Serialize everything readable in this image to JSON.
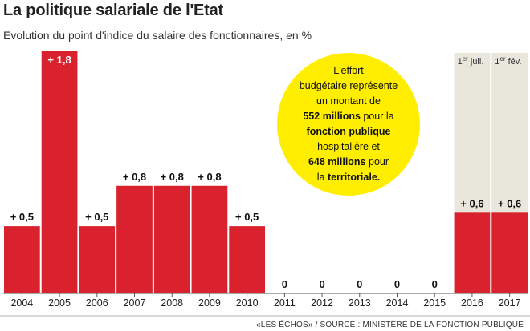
{
  "title": "La politique salariale de l'Etat",
  "subtitle": "Evolution du point d'indice du salaire des fonctionnaires, en %",
  "callout": {
    "l1": "L'effort",
    "l2": "budgétaire représente",
    "l3": "un montant de",
    "amount1": "552 millions",
    "l4": "pour la",
    "l5": "fonction publique",
    "l6": "hospitalière et",
    "amount2": "648 millions",
    "l7": "pour",
    "l8": "la",
    "l9": "territoriale."
  },
  "source": "«LES ÉCHOS» / SOURCE : MINISTÈRE DE LA FONCTION PUBLIQUE",
  "colors": {
    "bar": "#d9222d",
    "highlight_column": "#e9e6dc",
    "callout": "#ffee00"
  },
  "chart_data": {
    "type": "bar",
    "title": "La politique salariale de l'Etat",
    "subtitle": "Evolution du point d'indice du salaire des fonctionnaires, en %",
    "categories": [
      "2004",
      "2005",
      "2006",
      "2007",
      "2008",
      "2009",
      "2010",
      "2011",
      "2012",
      "2013",
      "2014",
      "2015",
      "2016",
      "2017"
    ],
    "values": [
      0.5,
      1.8,
      0.5,
      0.8,
      0.8,
      0.8,
      0.5,
      0,
      0,
      0,
      0,
      0,
      0.6,
      0.6
    ],
    "data_labels": [
      "+ 0,5",
      "+ 1,8",
      "+ 0,5",
      "+ 0,8",
      "+ 0,8",
      "+ 0,8",
      "+ 0,5",
      "0",
      "0",
      "0",
      "0",
      "0",
      "+ 0,6",
      "+ 0,6"
    ],
    "highlighted": [
      {
        "category": "2016",
        "note_main": "1",
        "note_sup": "er",
        "note_rest": " juil."
      },
      {
        "category": "2017",
        "note_main": "1",
        "note_sup": "er",
        "note_rest": " fév."
      }
    ],
    "ylim": [
      0,
      1.8
    ],
    "xlabel": "",
    "ylabel": "",
    "grid": false
  }
}
